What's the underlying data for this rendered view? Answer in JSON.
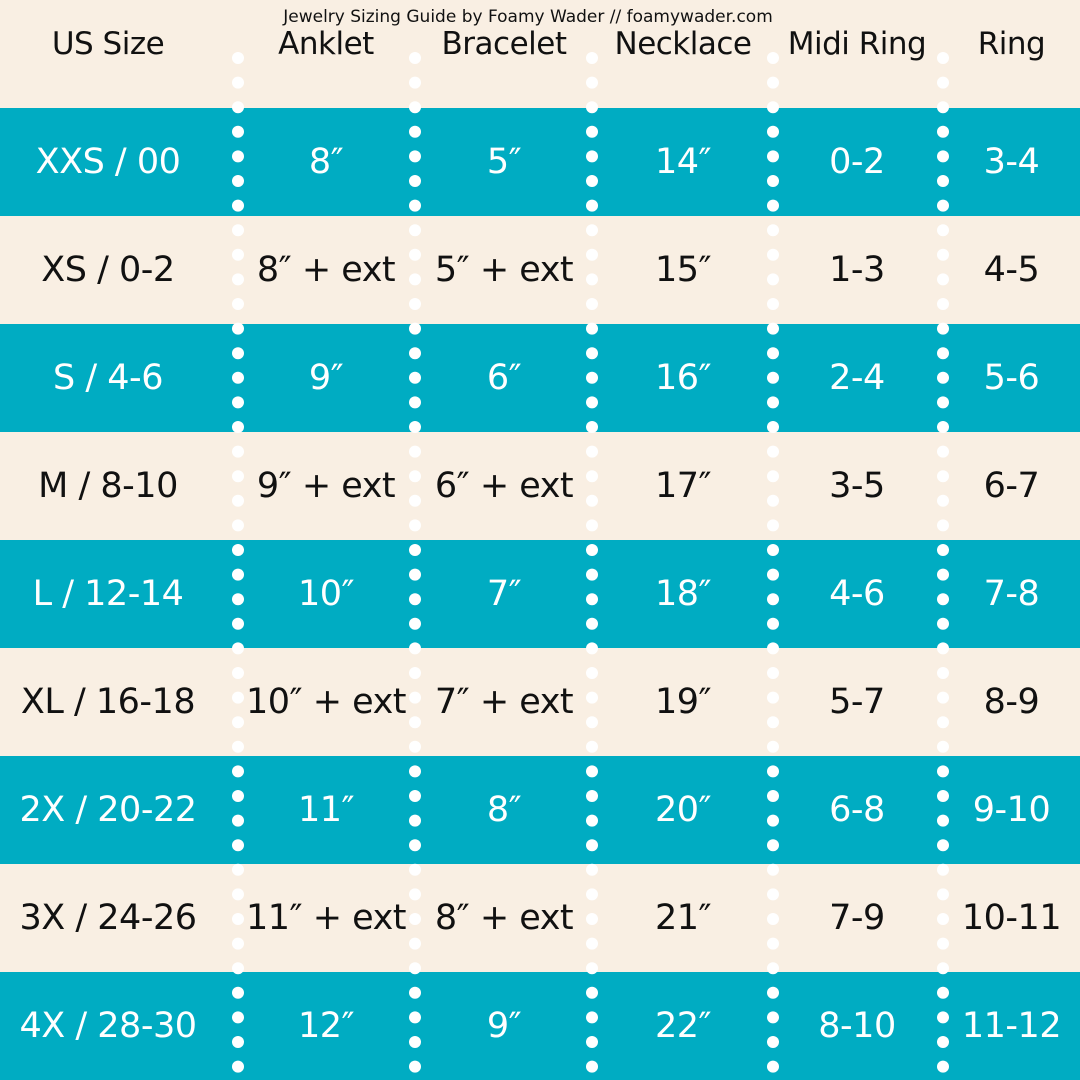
{
  "title": "Jewelry Sizing Guide by Foamy Wader // foamywader.com",
  "colors": {
    "teal": "#00acc2",
    "cream": "#f9efe3",
    "dots": "#ffffff"
  },
  "headers": [
    "US Size",
    "Anklet",
    "Bracelet",
    "Necklace",
    "Midi Ring",
    "Ring"
  ],
  "rows": [
    [
      "XXS / 00",
      "8″",
      "5″",
      "14″",
      "0-2",
      "3-4"
    ],
    [
      "XS / 0-2",
      "8″ + ext",
      "5″ + ext",
      "15″",
      "1-3",
      "4-5"
    ],
    [
      "S / 4-6",
      "9″",
      "6″",
      "16″",
      "2-4",
      "5-6"
    ],
    [
      "M / 8-10",
      "9″ + ext",
      "6″ + ext",
      "17″",
      "3-5",
      "6-7"
    ],
    [
      "L / 12-14",
      "10″",
      "7″",
      "18″",
      "4-6",
      "7-8"
    ],
    [
      "XL / 16-18",
      "10″ + ext",
      "7″ + ext",
      "19″",
      "5-7",
      "8-9"
    ],
    [
      "2X / 20-22",
      "11″",
      "8″",
      "20″",
      "6-8",
      "9-10"
    ],
    [
      "3X / 24-26",
      "11″ + ext",
      "8″ + ext",
      "21″",
      "7-9",
      "10-11"
    ],
    [
      "4X / 28-30",
      "12″",
      "9″",
      "22″",
      "8-10",
      "11-12"
    ]
  ]
}
